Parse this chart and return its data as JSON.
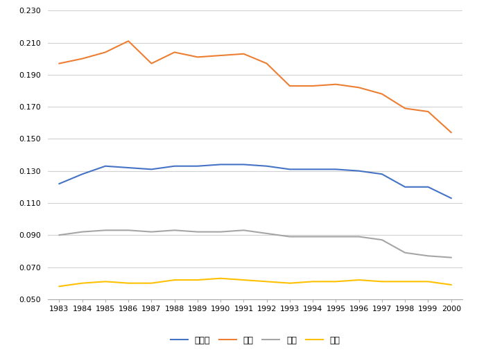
{
  "years": [
    1983,
    1984,
    1985,
    1986,
    1987,
    1988,
    1989,
    1990,
    1991,
    1992,
    1993,
    1994,
    1995,
    1996,
    1997,
    1998,
    1999,
    2000
  ],
  "全平均": [
    0.122,
    0.128,
    0.133,
    0.132,
    0.131,
    0.133,
    0.133,
    0.134,
    0.134,
    0.133,
    0.131,
    0.131,
    0.131,
    0.13,
    0.128,
    0.12,
    0.12,
    0.113
  ],
  "産産": [
    0.197,
    0.2,
    0.204,
    0.211,
    0.197,
    0.204,
    0.201,
    0.202,
    0.203,
    0.197,
    0.183,
    0.183,
    0.184,
    0.182,
    0.178,
    0.169,
    0.167,
    0.154
  ],
  "産官": [
    0.09,
    0.092,
    0.093,
    0.093,
    0.092,
    0.093,
    0.092,
    0.092,
    0.093,
    0.091,
    0.089,
    0.089,
    0.089,
    0.089,
    0.087,
    0.079,
    0.077,
    0.076
  ],
  "産学": [
    0.058,
    0.06,
    0.061,
    0.06,
    0.06,
    0.062,
    0.062,
    0.063,
    0.062,
    0.061,
    0.06,
    0.061,
    0.061,
    0.062,
    0.061,
    0.061,
    0.061,
    0.059
  ],
  "line_colors": {
    "全平均": "#4472C4",
    "産産": "#ED7D31",
    "産官": "#A5A5A5",
    "産学": "#FFC000"
  },
  "ylim": [
    0.05,
    0.23
  ],
  "yticks": [
    0.05,
    0.07,
    0.09,
    0.11,
    0.13,
    0.15,
    0.17,
    0.19,
    0.21,
    0.23
  ],
  "background_color": "#ffffff",
  "grid_color": "#d0d0d0",
  "legend_labels": [
    "全平均",
    "産産",
    "産官",
    "産学"
  ]
}
